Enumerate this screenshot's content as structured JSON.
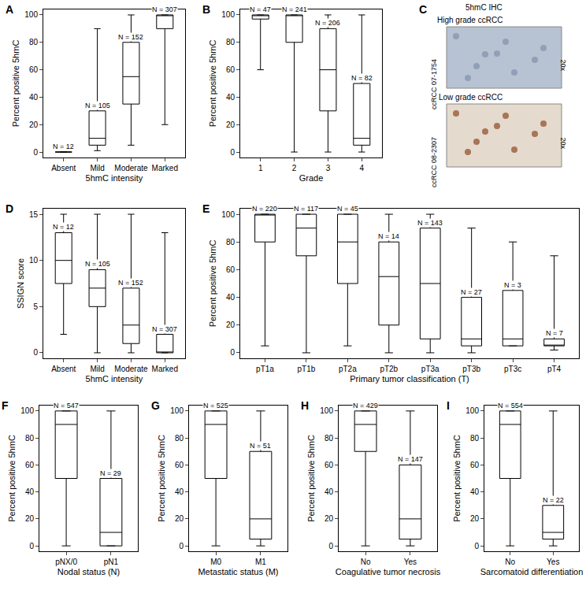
{
  "chart_data": [
    {
      "type": "box",
      "panel": "A",
      "x_label": "5hmC intensity",
      "y_label": "Percent positive 5hmC",
      "color": "#000000",
      "categories": [
        "Absent",
        "Mild",
        "Moderate",
        "Marked"
      ],
      "whisker_low": [
        0,
        1,
        5,
        20
      ],
      "q1": [
        0,
        5,
        35,
        90
      ],
      "median": [
        0,
        10,
        55,
        100
      ],
      "q3": [
        0,
        30,
        80,
        100
      ],
      "whisker_high": [
        0,
        90,
        100,
        100
      ],
      "n_labels": [
        "N = 12",
        "N = 105",
        "N = 152",
        "N = 307"
      ],
      "ylim": [
        -4,
        104
      ],
      "yticks": [
        0,
        20,
        40,
        60,
        80,
        100
      ]
    },
    {
      "type": "box",
      "panel": "B",
      "x_label": "Grade",
      "y_label": "Percent positive 5hmC",
      "color": "#000000",
      "categories": [
        "1",
        "2",
        "3",
        "4"
      ],
      "whisker_low": [
        60,
        0,
        0,
        0
      ],
      "q1": [
        97,
        80,
        30,
        5
      ],
      "median": [
        100,
        100,
        60,
        10
      ],
      "q3": [
        100,
        100,
        90,
        50
      ],
      "whisker_high": [
        100,
        100,
        100,
        100
      ],
      "n_labels": [
        "N = 47",
        "N = 241",
        "N = 206",
        "N = 82"
      ],
      "ylim": [
        -4,
        104
      ],
      "yticks": [
        0,
        20,
        40,
        60,
        80,
        100
      ]
    },
    {
      "type": "image",
      "panel": "C",
      "title": "5hmC IHC",
      "images": [
        {
          "title": "High grade ccRCC",
          "side_label": "ccRCC 07-1754",
          "magnification": "20x",
          "color": "#b7c3d3"
        },
        {
          "title": "Low grade ccRCC",
          "side_label": "ccRCC 08-2307",
          "magnification": "20x",
          "color": "#e4dacd"
        }
      ]
    },
    {
      "type": "box",
      "panel": "D",
      "x_label": "5hmC intensity",
      "y_label": "SSIGN score",
      "color": "#000000",
      "categories": [
        "Absent",
        "Mild",
        "Moderate",
        "Marked"
      ],
      "whisker_low": [
        2,
        0,
        0,
        0
      ],
      "q1": [
        7.5,
        5,
        1,
        0
      ],
      "median": [
        10,
        7,
        3,
        0
      ],
      "q3": [
        13,
        9,
        7,
        2
      ],
      "whisker_high": [
        15,
        15,
        15,
        13
      ],
      "n_labels": [
        "N = 12",
        "N = 105",
        "N = 152",
        "N = 307"
      ],
      "ylim": [
        -0.6,
        15.6
      ],
      "yticks": [
        0,
        5,
        10,
        15
      ]
    },
    {
      "type": "box",
      "panel": "E",
      "x_label": "Primary tumor classification (T)",
      "y_label": "Percent positive 5hmC",
      "color": "#000000",
      "categories": [
        "pT1a",
        "pT1b",
        "pT2a",
        "pT2b",
        "pT3a",
        "pT3b",
        "pT3c",
        "pT4"
      ],
      "whisker_low": [
        5,
        0,
        5,
        0,
        0,
        0,
        5,
        2
      ],
      "q1": [
        80,
        70,
        50,
        20,
        10,
        5,
        5,
        5
      ],
      "median": [
        100,
        90,
        80,
        55,
        50,
        10,
        10,
        5
      ],
      "q3": [
        100,
        100,
        100,
        80,
        90,
        40,
        45,
        10
      ],
      "whisker_high": [
        100,
        100,
        100,
        100,
        100,
        90,
        80,
        70
      ],
      "n_labels": [
        "N = 220",
        "N = 117",
        "N = 45",
        "N = 14",
        "N = 143",
        "N = 27",
        "N = 3",
        "N = 7"
      ],
      "ylim": [
        -4,
        104
      ],
      "yticks": [
        0,
        20,
        40,
        60,
        80,
        100
      ]
    },
    {
      "type": "box",
      "panel": "F",
      "x_label": "Nodal status (N)",
      "y_label": "Percent positive 5hmC",
      "color": "#000000",
      "categories": [
        "pNX/0",
        "pN1"
      ],
      "whisker_low": [
        0,
        0
      ],
      "q1": [
        50,
        0
      ],
      "median": [
        90,
        10
      ],
      "q3": [
        100,
        50
      ],
      "whisker_high": [
        100,
        100
      ],
      "n_labels": [
        "N = 547",
        "N = 29"
      ],
      "ylim": [
        -4,
        104
      ],
      "yticks": [
        0,
        20,
        40,
        60,
        80,
        100
      ]
    },
    {
      "type": "box",
      "panel": "G",
      "x_label": "Metastatic status (M)",
      "y_label": "Percent positive 5hmC",
      "color": "#000000",
      "categories": [
        "M0",
        "M1"
      ],
      "whisker_low": [
        0,
        0
      ],
      "q1": [
        50,
        5
      ],
      "median": [
        90,
        20
      ],
      "q3": [
        100,
        70
      ],
      "whisker_high": [
        100,
        100
      ],
      "n_labels": [
        "N = 525",
        "N = 51"
      ],
      "ylim": [
        -4,
        104
      ],
      "yticks": [
        0,
        20,
        40,
        60,
        80,
        100
      ]
    },
    {
      "type": "box",
      "panel": "H",
      "x_label": "Coagulative tumor necrosis",
      "y_label": "Percent positive 5hmC",
      "color": "#000000",
      "categories": [
        "No",
        "Yes"
      ],
      "whisker_low": [
        0,
        0
      ],
      "q1": [
        70,
        5
      ],
      "median": [
        90,
        20
      ],
      "q3": [
        100,
        60
      ],
      "whisker_high": [
        100,
        100
      ],
      "n_labels": [
        "N = 429",
        "N = 147"
      ],
      "ylim": [
        -4,
        104
      ],
      "yticks": [
        0,
        20,
        40,
        60,
        80,
        100
      ]
    },
    {
      "type": "box",
      "panel": "I",
      "x_label": "Sarcomatoid differentiation",
      "y_label": "Percent positive 5hmC",
      "color": "#000000",
      "categories": [
        "No",
        "Yes"
      ],
      "whisker_low": [
        0,
        0
      ],
      "q1": [
        50,
        5
      ],
      "median": [
        90,
        10
      ],
      "q3": [
        100,
        30
      ],
      "whisker_high": [
        100,
        100
      ],
      "n_labels": [
        "N = 554",
        "N = 22"
      ],
      "ylim": [
        -4,
        104
      ],
      "yticks": [
        0,
        20,
        40,
        60,
        80,
        100
      ]
    }
  ]
}
